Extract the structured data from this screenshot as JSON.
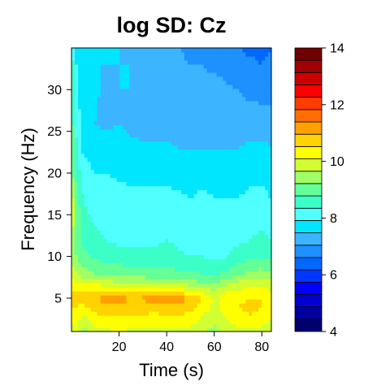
{
  "chart_data": {
    "type": "heatmap",
    "title": "log SD: Cz",
    "xlabel": "Time (s)",
    "ylabel": "Frequency (Hz)",
    "xlim": [
      0,
      84
    ],
    "ylim": [
      1,
      35
    ],
    "x_ticks": [
      20,
      40,
      60,
      80
    ],
    "y_ticks": [
      5,
      10,
      15,
      20,
      25,
      30
    ],
    "colorbar": {
      "range": [
        4,
        14
      ],
      "ticks": [
        4,
        6,
        8,
        10,
        12,
        14
      ],
      "levels": [
        4,
        4.5,
        5,
        5.5,
        6,
        6.5,
        7,
        7.5,
        8,
        8.5,
        9,
        9.5,
        10,
        10.5,
        11,
        11.5,
        12,
        12.5,
        13,
        13.5,
        14
      ],
      "colors": [
        "#00006e",
        "#0000a0",
        "#0000d2",
        "#0000ff",
        "#0037ff",
        "#0068ff",
        "#1e90ff",
        "#3cb4ff",
        "#00e6ff",
        "#50ffff",
        "#3cffc8",
        "#64ff96",
        "#a0ff64",
        "#d2ff32",
        "#ffff00",
        "#ffd200",
        "#ffa000",
        "#ff6e00",
        "#ff3c00",
        "#ff0000",
        "#cd0000",
        "#a00000",
        "#700000"
      ]
    },
    "frequencies": [
      1,
      3,
      4,
      5,
      6,
      7,
      8,
      10,
      12,
      15,
      17,
      20,
      23,
      26,
      30,
      33,
      35
    ],
    "times": [
      0,
      2,
      5,
      10,
      15,
      20,
      25,
      30,
      35,
      40,
      45,
      50,
      55,
      60,
      65,
      70,
      75,
      80,
      84
    ],
    "log_sd_grid": [
      [
        10.6,
        11.0,
        10.3,
        10.8,
        10.9,
        11.0,
        10.9,
        10.8,
        10.8,
        10.9,
        10.8,
        10.8,
        10.5,
        10.3,
        10.6,
        10.8,
        10.9,
        10.8,
        10.6
      ],
      [
        11.4,
        11.2,
        11.0,
        11.4,
        11.5,
        11.5,
        11.5,
        11.5,
        11.4,
        11.6,
        11.5,
        11.4,
        11.0,
        10.8,
        11.1,
        11.4,
        11.5,
        11.4,
        11.2
      ],
      [
        11.6,
        11.5,
        11.4,
        11.8,
        11.9,
        11.8,
        11.7,
        11.8,
        11.7,
        11.9,
        11.8,
        11.7,
        11.3,
        10.9,
        11.2,
        11.5,
        11.6,
        11.5,
        11.3
      ],
      [
        11.8,
        11.7,
        11.6,
        12.0,
        12.2,
        12.3,
        12.0,
        12.1,
        12.2,
        12.4,
        12.3,
        12.0,
        11.5,
        10.9,
        11.2,
        11.4,
        11.5,
        11.5,
        11.3
      ],
      [
        11.5,
        11.4,
        11.5,
        11.5,
        11.5,
        11.4,
        11.3,
        11.3,
        11.2,
        11.3,
        11.2,
        11.0,
        10.8,
        10.5,
        10.9,
        11.0,
        11.1,
        11.2,
        11.0
      ],
      [
        11.1,
        11.0,
        10.8,
        10.7,
        10.6,
        10.5,
        10.5,
        10.4,
        10.3,
        10.3,
        10.2,
        10.1,
        10.0,
        9.9,
        10.2,
        10.5,
        10.7,
        10.8,
        10.6
      ],
      [
        10.8,
        10.6,
        10.2,
        10.0,
        9.9,
        9.9,
        9.8,
        9.7,
        9.7,
        9.7,
        9.6,
        9.6,
        9.5,
        9.4,
        9.6,
        9.9,
        10.1,
        10.2,
        10.1
      ],
      [
        10.3,
        10.0,
        9.7,
        9.4,
        9.3,
        9.2,
        9.1,
        9.1,
        9.1,
        9.2,
        9.1,
        9.0,
        9.0,
        8.9,
        9.0,
        9.2,
        9.4,
        9.5,
        9.4
      ],
      [
        10.4,
        9.8,
        9.3,
        9.1,
        9.0,
        8.9,
        8.9,
        8.9,
        8.9,
        9.0,
        8.9,
        8.8,
        8.8,
        8.7,
        8.8,
        8.9,
        9.0,
        9.1,
        9.0
      ],
      [
        11.2,
        10.0,
        9.1,
        8.9,
        8.8,
        8.8,
        8.7,
        8.8,
        8.7,
        8.8,
        8.7,
        8.6,
        8.7,
        8.6,
        8.6,
        8.7,
        8.8,
        8.9,
        8.8
      ],
      [
        10.9,
        9.8,
        9.0,
        8.8,
        8.7,
        8.7,
        8.6,
        8.6,
        8.6,
        8.6,
        8.6,
        8.5,
        8.6,
        8.5,
        8.5,
        8.5,
        8.6,
        8.6,
        8.5
      ],
      [
        10.2,
        9.3,
        8.7,
        8.5,
        8.5,
        8.4,
        8.4,
        8.4,
        8.4,
        8.4,
        8.3,
        8.3,
        8.3,
        8.3,
        8.3,
        8.3,
        8.4,
        8.4,
        8.3
      ],
      [
        10.0,
        9.1,
        8.4,
        8.3,
        8.2,
        8.2,
        8.1,
        8.1,
        8.1,
        8.1,
        8.0,
        8.0,
        8.0,
        8.0,
        8.0,
        8.0,
        8.1,
        8.1,
        8.0
      ],
      [
        9.8,
        8.9,
        8.2,
        8.0,
        7.9,
        8.0,
        7.9,
        7.8,
        7.8,
        7.8,
        7.8,
        7.7,
        7.7,
        7.7,
        7.7,
        7.7,
        7.7,
        7.8,
        7.8
      ],
      [
        9.5,
        8.6,
        8.1,
        8.1,
        7.8,
        8.0,
        8.0,
        7.9,
        7.8,
        7.7,
        7.5,
        7.6,
        7.6,
        7.7,
        7.6,
        7.5,
        7.4,
        7.3,
        7.3
      ],
      [
        9.3,
        8.5,
        8.0,
        8.0,
        8.0,
        8.0,
        8.0,
        7.9,
        7.8,
        7.6,
        7.6,
        7.5,
        7.5,
        7.4,
        7.3,
        7.2,
        7.1,
        7.0,
        7.1
      ],
      [
        9.2,
        8.4,
        8.0,
        8.0,
        8.0,
        8.0,
        7.9,
        7.8,
        7.7,
        7.6,
        7.5,
        7.4,
        7.3,
        7.2,
        7.1,
        7.0,
        6.9,
        6.9,
        7.0
      ]
    ]
  }
}
